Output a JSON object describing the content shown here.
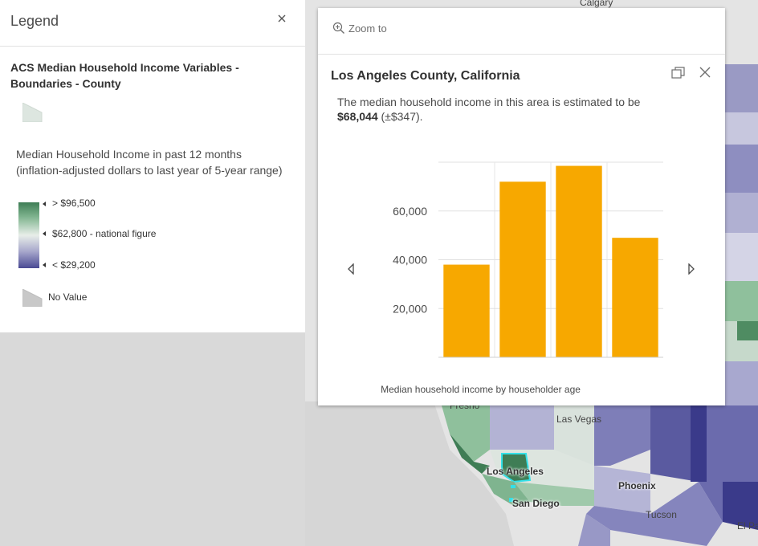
{
  "map": {
    "cities": [
      "Calgary",
      "Fresno",
      "Las Vegas",
      "Los Angeles",
      "San Diego",
      "Phoenix",
      "Tucson",
      "El Pa"
    ]
  },
  "legend": {
    "title": "Legend",
    "close_icon": "close-icon",
    "layer_name": "ACS Median Household Income Variables - Boundaries - County",
    "field_description": "Median Household Income in past 12 months (inflation-adjusted dollars to last year of 5-year range)",
    "ramp_labels": [
      "> $96,500",
      "$62,800 - national figure",
      "< $29,200"
    ],
    "ramp_colors": [
      "#3e7d55",
      "#e8eee9",
      "#4a4a93"
    ],
    "no_value_label": "No Value"
  },
  "popup": {
    "zoom_to_label": "Zoom to",
    "title": "Los Angeles County, California",
    "text_prefix": "The median household income in this area is estimated to be ",
    "text_value": "$68,044",
    "text_suffix": " (±$347).",
    "chart_caption": "Median household income by householder age"
  },
  "chart_data": {
    "type": "bar",
    "categories": [
      "",
      "",
      "",
      ""
    ],
    "values": [
      38000,
      72000,
      78500,
      49000
    ],
    "ylim": [
      0,
      80000
    ],
    "ytick_values": [
      20000,
      40000,
      60000
    ],
    "ytick_labels": [
      "20,000",
      "40,000",
      "60,000"
    ],
    "bar_color": "#f7a800",
    "grid": true
  }
}
